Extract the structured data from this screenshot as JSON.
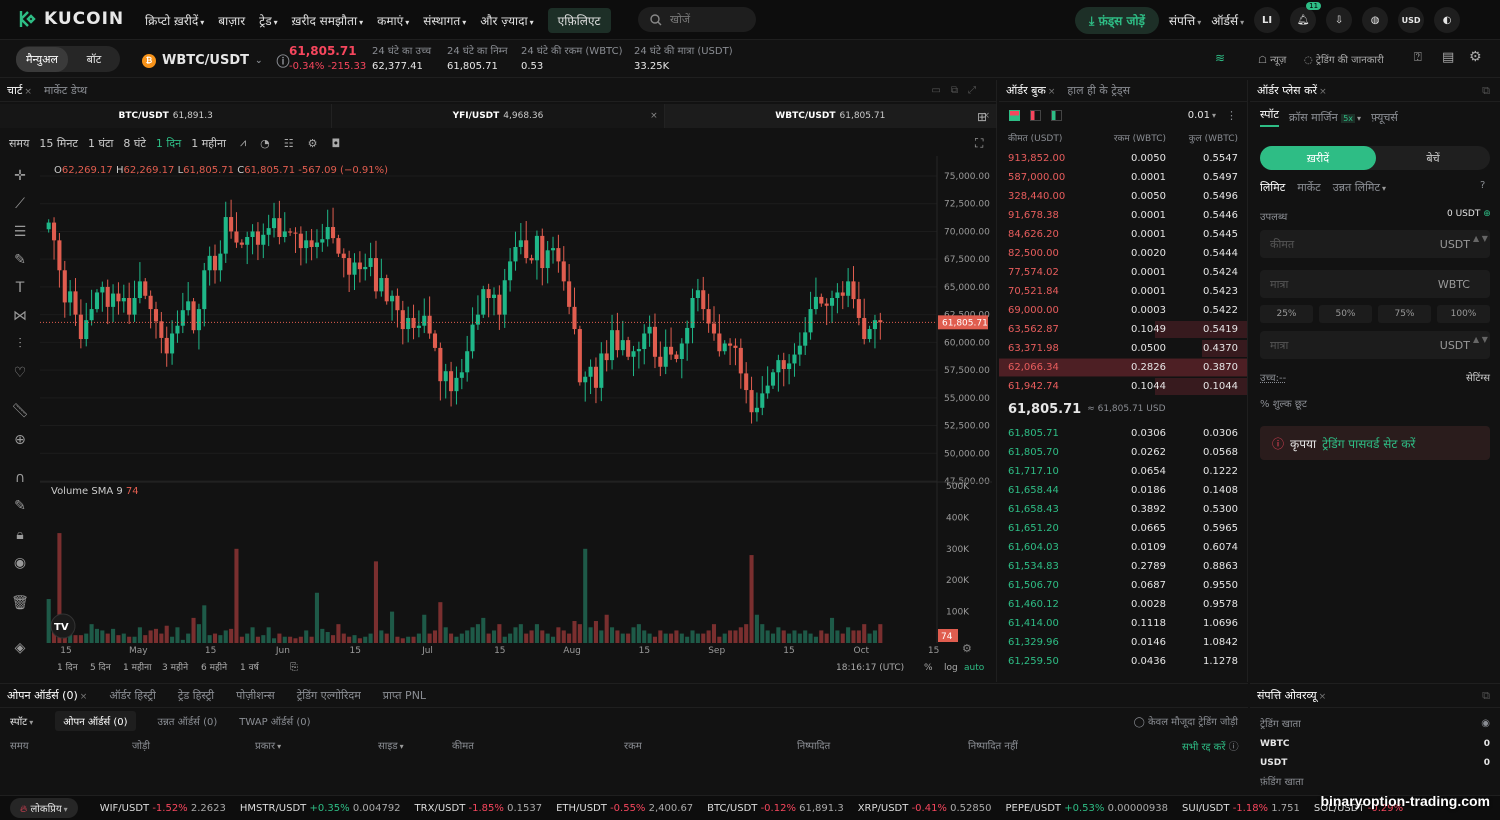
{
  "nav": {
    "logo": "KUCOIN",
    "menu": [
      {
        "label": "क्रिप्टो ख़रीदें",
        "caret": true
      },
      {
        "label": "बाज़ार",
        "caret": false
      },
      {
        "label": "ट्रेड",
        "caret": true
      },
      {
        "label": "ख़रीद समझौता",
        "caret": true
      },
      {
        "label": "कमाएं",
        "caret": true
      },
      {
        "label": "संस्थागत",
        "caret": true
      },
      {
        "label": "और ज़्यादा",
        "caret": true
      }
    ],
    "affiliate": "एफ़िलिएट",
    "search_placeholder": "खोजें",
    "add_funds": "फ़ंड्स जोड़ें",
    "assets": "संपत्ति",
    "orders": "ऑर्डर्स",
    "avatar": "LI",
    "notif_count": "11",
    "currency": "USD"
  },
  "ticker": {
    "mode_manual": "मैन्युअल",
    "mode_bot": "बॉट",
    "pair": "WBTC/USDT",
    "price": "61,805.71",
    "change_pct": "-0.34%",
    "change_abs": "-215.33",
    "stats": [
      {
        "label": "24 घंटे का उच्च",
        "value": "62,377.41"
      },
      {
        "label": "24 घंटे का निम्न",
        "value": "61,805.71"
      },
      {
        "label": "24 घंटे की रकम (WBTC)",
        "value": "0.53"
      },
      {
        "label": "24 घंटे की मात्रा (USDT)",
        "value": "33.25K"
      }
    ],
    "news": "न्यूज़",
    "trading_info": "ट्रेडिंग की जानकारी"
  },
  "chart": {
    "tab_chart": "चार्ट",
    "tab_depth": "मार्केट डेप्थ",
    "pair_tabs": [
      {
        "pair": "BTC/USDT",
        "price": "61,891.3"
      },
      {
        "pair": "YFI/USDT",
        "price": "4,968.36"
      },
      {
        "pair": "WBTC/USDT",
        "price": "61,805.71"
      }
    ],
    "toolbar": [
      "समय",
      "15 मिनट",
      "1 घंटा",
      "8 घंटे",
      "1 दिन",
      "1 महीना"
    ],
    "ohlc": {
      "o": "62,269.17",
      "h": "62,269.17",
      "l": "61,805.71",
      "c": "61,805.71",
      "chg": "-567.09 (−0.91%)"
    },
    "volume_label": "Volume SMA 9",
    "volume_value": "74",
    "last_price_tag": "61,805.71",
    "volume_tag": "74",
    "ranges": [
      "1 दिन",
      "5 दिन",
      "1 महीना",
      "3 महीने",
      "6 महीने",
      "1 वर्ष"
    ],
    "clock": "18:16:17 (UTC)",
    "opts": [
      "%",
      "log",
      "auto"
    ]
  },
  "chart_data": {
    "type": "candlestick",
    "x_labels": [
      "15",
      "May",
      "15",
      "Jun",
      "15",
      "Jul",
      "15",
      "Aug",
      "15",
      "Sep",
      "15",
      "Oct",
      "15"
    ],
    "y_ticks": [
      "75,000.00",
      "72,500.00",
      "70,000.00",
      "67,500.00",
      "65,000.00",
      "62,500.00",
      "60,000.00",
      "57,500.00",
      "55,000.00",
      "52,500.00",
      "50,000.00",
      "47,500.00"
    ],
    "ylim": [
      47500,
      75000
    ],
    "volume_ticks": [
      "500K",
      "400K",
      "300K",
      "200K",
      "100K"
    ],
    "volume_ylim": [
      0,
      500000
    ],
    "closes": [
      70800,
      69200,
      66500,
      63600,
      64600,
      62500,
      60300,
      62000,
      63000,
      64500,
      65000,
      63200,
      64400,
      63700,
      64000,
      62500,
      64000,
      65500,
      64200,
      63000,
      61900,
      60400,
      59000,
      60800,
      61500,
      62900,
      63700,
      61100,
      63000,
      66500,
      67800,
      66500,
      68000,
      71300,
      70000,
      69000,
      68800,
      69500,
      70000,
      68800,
      69700,
      70300,
      71200,
      69500,
      70000,
      69900,
      69800,
      68500,
      69200,
      68600,
      69000,
      69300,
      70400,
      69400,
      68000,
      67600,
      66100,
      67200,
      66600,
      66800,
      67600,
      64600,
      65800,
      63700,
      64200,
      62900,
      61200,
      62200,
      61300,
      61500,
      62400,
      60800,
      59500,
      56500,
      57400,
      55600,
      56800,
      57300,
      59200,
      61600,
      62500,
      64800,
      64000,
      64300,
      62500,
      65600,
      67300,
      68600,
      69200,
      67600,
      67400,
      69600,
      66700,
      68300,
      68500,
      67300,
      65500,
      63200,
      61200,
      56400,
      56900,
      57800,
      55900,
      59000,
      58400,
      61100,
      59300,
      60200,
      58700,
      59200,
      59400,
      60800,
      61400,
      58700,
      57800,
      59600,
      58900,
      58500,
      59900,
      61300,
      64000,
      64700,
      63000,
      61700,
      60800,
      59200,
      59900,
      59700,
      59500,
      57200,
      55700,
      53700,
      54100,
      55400,
      56100,
      57300,
      58400,
      57600,
      58100,
      58900,
      59700,
      60900,
      63000,
      64100,
      63500,
      63300,
      64000,
      64500,
      64200,
      65500,
      63900,
      62200,
      60300,
      61200,
      62000,
      61805.71
    ],
    "volumes": [
      140,
      50,
      350,
      30,
      30,
      25,
      25,
      30,
      60,
      45,
      40,
      30,
      45,
      25,
      30,
      20,
      20,
      50,
      25,
      40,
      45,
      30,
      55,
      20,
      50,
      10,
      30,
      80,
      60,
      120,
      25,
      30,
      25,
      40,
      45,
      300,
      20,
      30,
      50,
      20,
      25,
      50,
      15,
      30,
      20,
      20,
      15,
      20,
      40,
      20,
      160,
      45,
      35,
      25,
      60,
      30,
      20,
      25,
      15,
      20,
      30,
      260,
      40,
      30,
      100,
      20,
      15,
      20,
      20,
      30,
      90,
      30,
      40,
      130,
      50,
      30,
      20,
      30,
      40,
      50,
      60,
      80,
      30,
      40,
      60,
      20,
      30,
      50,
      60,
      30,
      40,
      60,
      40,
      30,
      20,
      50,
      40,
      30,
      70,
      60,
      300,
      50,
      70,
      40,
      90,
      50,
      40,
      30,
      30,
      50,
      60,
      40,
      30,
      20,
      40,
      30,
      30,
      40,
      30,
      20,
      40,
      30,
      30,
      40,
      60,
      20,
      30,
      40,
      40,
      50,
      60,
      280,
      90,
      60,
      40,
      30,
      50,
      40,
      30,
      40,
      30,
      40,
      30,
      20,
      40,
      30,
      80,
      40,
      30,
      50,
      40,
      40,
      60,
      30,
      40,
      60,
      70,
      70,
      60,
      40,
      74
    ]
  },
  "orderbook": {
    "tab_book": "ऑर्डर बुक",
    "tab_trades": "हाल ही के ट्रेड्स",
    "precision": "0.01",
    "col_price": "कीमत (USDT)",
    "col_amount": "रकम (WBTC)",
    "col_total": "कुल (WBTC)",
    "asks": [
      {
        "p": "913,852.00",
        "a": "0.0050",
        "t": "0.5547",
        "d": 0.0
      },
      {
        "p": "587,000.00",
        "a": "0.0001",
        "t": "0.5497",
        "d": 0.0
      },
      {
        "p": "328,440.00",
        "a": "0.0050",
        "t": "0.5496",
        "d": 0.0
      },
      {
        "p": "91,678.38",
        "a": "0.0001",
        "t": "0.5446",
        "d": 0.0
      },
      {
        "p": "84,626.20",
        "a": "0.0001",
        "t": "0.5445",
        "d": 0.0
      },
      {
        "p": "82,500.00",
        "a": "0.0020",
        "t": "0.5444",
        "d": 0.0
      },
      {
        "p": "77,574.02",
        "a": "0.0001",
        "t": "0.5424",
        "d": 0.0
      },
      {
        "p": "70,521.84",
        "a": "0.0001",
        "t": "0.5423",
        "d": 0.0
      },
      {
        "p": "69,000.00",
        "a": "0.0003",
        "t": "0.5422",
        "d": 0.0
      },
      {
        "p": "63,562.87",
        "a": "0.1049",
        "t": "0.5419",
        "d": 0.37
      },
      {
        "p": "63,371.98",
        "a": "0.0500",
        "t": "0.4370",
        "d": 0.18
      },
      {
        "p": "62,066.34",
        "a": "0.2826",
        "t": "0.3870",
        "d": 1.0
      },
      {
        "p": "61,942.74",
        "a": "0.1044",
        "t": "0.1044",
        "d": 0.37
      }
    ],
    "mid_price": "61,805.71",
    "mid_usd": "≈ 61,805.71 USD",
    "bids": [
      {
        "p": "61,805.71",
        "a": "0.0306",
        "t": "0.0306"
      },
      {
        "p": "61,805.70",
        "a": "0.0262",
        "t": "0.0568"
      },
      {
        "p": "61,717.10",
        "a": "0.0654",
        "t": "0.1222"
      },
      {
        "p": "61,658.44",
        "a": "0.0186",
        "t": "0.1408"
      },
      {
        "p": "61,658.43",
        "a": "0.3892",
        "t": "0.5300"
      },
      {
        "p": "61,651.20",
        "a": "0.0665",
        "t": "0.5965"
      },
      {
        "p": "61,604.03",
        "a": "0.0109",
        "t": "0.6074"
      },
      {
        "p": "61,534.83",
        "a": "0.2789",
        "t": "0.8863"
      },
      {
        "p": "61,506.70",
        "a": "0.0687",
        "t": "0.9550"
      },
      {
        "p": "61,460.12",
        "a": "0.0028",
        "t": "0.9578"
      },
      {
        "p": "61,414.00",
        "a": "0.1118",
        "t": "1.0696"
      },
      {
        "p": "61,329.96",
        "a": "0.0146",
        "t": "1.0842"
      },
      {
        "p": "61,259.50",
        "a": "0.0436",
        "t": "1.1278"
      }
    ]
  },
  "placeorder": {
    "title": "ऑर्डर प्लेस करें",
    "tabs": [
      "स्पॉट",
      "क्रॉस मार्जिन",
      "फ़्यूचर्स"
    ],
    "leverage": "5x",
    "buy": "ख़रीदें",
    "sell": "बेचें",
    "types": [
      "लिमिट",
      "मार्केट",
      "उन्नत लिमिट"
    ],
    "available_label": "उपलब्ध",
    "available_value": "0 USDT",
    "price_ph": "कीमत",
    "qty_ph": "मात्रा",
    "qty_ph2": "मात्रा",
    "usdt": "USDT",
    "usdt2": "USDT",
    "wbtc": "WBTC",
    "percents": [
      "25%",
      "50%",
      "75%",
      "100%"
    ],
    "max_label": "उच्च:--",
    "settings": "सेटिंग्स",
    "fee": "शुल्क छूट",
    "warn_pre": "कृपया",
    "warn_link": "ट्रेडिंग पासवर्ड सेट करें"
  },
  "orders": {
    "tabs": [
      "ओपन ऑर्डर्स (0)",
      "ऑर्डर हिस्ट्री",
      "ट्रेड हिस्ट्री",
      "पोज़ीशन्स",
      "ट्रेडिंग एल्गोरिदम",
      "प्राप्त PNL"
    ],
    "sub_spot": "स्पॉट",
    "subtabs": [
      "ओपन ऑर्डर्स (0)",
      "उन्नत ऑर्डर्स (0)",
      "TWAP ऑर्डर्स (0)"
    ],
    "only_current": "केवल मौजूदा ट्रेडिंग जोड़ी",
    "cols": [
      "समय",
      "जोड़ी",
      "प्रकार",
      "साइड",
      "कीमत",
      "रकम",
      "निष्पादित",
      "निष्पादित नहीं"
    ],
    "cancel_all": "सभी रद्द करें"
  },
  "assets_overview": {
    "title": "संपत्ति ओवरव्यू",
    "trading_account": "ट्रेडिंग खाता",
    "rows": [
      {
        "c": "WBTC",
        "v": "0"
      },
      {
        "c": "USDT",
        "v": "0"
      }
    ],
    "funding_account": "फ़ंडिंग खाता"
  },
  "footer": {
    "lang": "लोकप्रिय",
    "items": [
      {
        "pair": "WIF/USDT",
        "chg": "-1.52%",
        "price": "2.2623",
        "up": false
      },
      {
        "pair": "HMSTR/USDT",
        "chg": "+0.35%",
        "price": "0.004792",
        "up": true
      },
      {
        "pair": "TRX/USDT",
        "chg": "-1.85%",
        "price": "0.1537",
        "up": false
      },
      {
        "pair": "ETH/USDT",
        "chg": "-0.55%",
        "price": "2,400.67",
        "up": false
      },
      {
        "pair": "BTC/USDT",
        "chg": "-0.12%",
        "price": "61,891.3",
        "up": false
      },
      {
        "pair": "XRP/USDT",
        "chg": "-0.41%",
        "price": "0.52850",
        "up": false
      },
      {
        "pair": "PEPE/USDT",
        "chg": "+0.53%",
        "price": "0.00000938",
        "up": true
      },
      {
        "pair": "SUI/USDT",
        "chg": "-1.18%",
        "price": "1.751",
        "up": false
      },
      {
        "pair": "SOL/USDT",
        "chg": "-0.29%",
        "price": "",
        "up": false
      }
    ],
    "watermark": "binaryoption-trading.com"
  }
}
